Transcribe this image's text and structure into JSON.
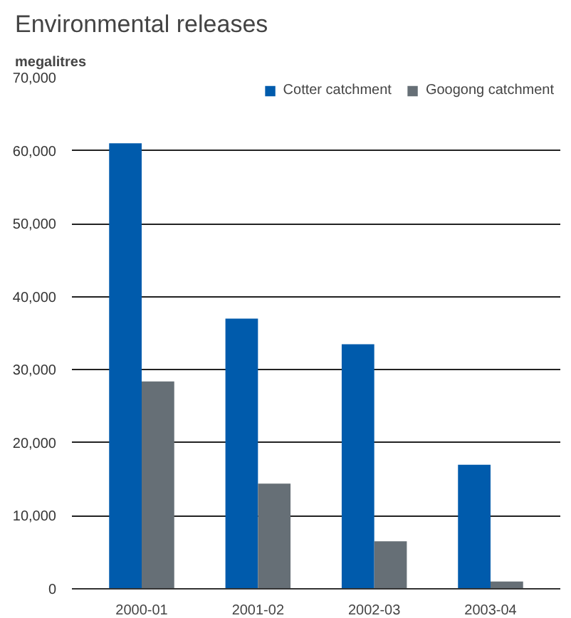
{
  "chart_data": {
    "type": "bar",
    "title": "Environmental releases",
    "ylabel": "megalitres",
    "categories": [
      "2000-01",
      "2001-02",
      "2002-03",
      "2003-04"
    ],
    "series": [
      {
        "name": "Cotter catchment",
        "color": "#005bac",
        "values": [
          61000,
          37000,
          33500,
          17000
        ]
      },
      {
        "name": "Googong catchment",
        "color": "#666f76",
        "values": [
          28400,
          14400,
          6500,
          1000
        ]
      }
    ],
    "ylim": [
      0,
      70000
    ],
    "yticks": [
      0,
      {
        "value": 10000,
        "label": "10,000"
      },
      {
        "value": 20000,
        "label": "20,000"
      },
      {
        "value": 30000,
        "label": "30,000"
      },
      {
        "value": 40000,
        "label": "40,000"
      },
      {
        "value": 50000,
        "label": "50,000"
      },
      {
        "value": 60000,
        "label": "60,000"
      },
      {
        "value": 70000,
        "label": "70,000"
      }
    ],
    "grid": "y",
    "legend": "top right"
  }
}
